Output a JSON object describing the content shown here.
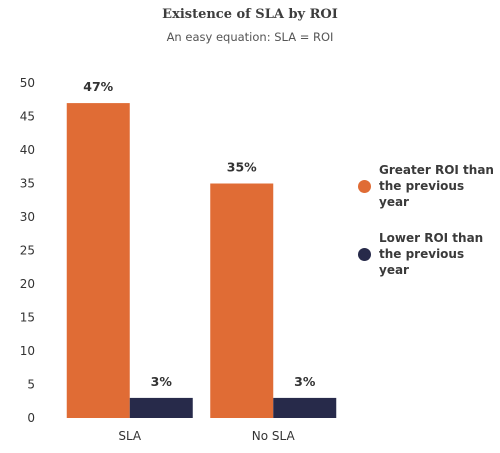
{
  "chart_data": {
    "type": "bar",
    "title": "Existence of SLA by ROI",
    "subtitle": "An easy equation: SLA = ROI",
    "categories": [
      "SLA",
      "No SLA"
    ],
    "series": [
      {
        "name": "Greater ROI than the previous year",
        "values": [
          47,
          35
        ],
        "labels": [
          "47%",
          "35%"
        ],
        "color": "#E06C35"
      },
      {
        "name": "Lower ROI than the previous year",
        "values": [
          3,
          3
        ],
        "labels": [
          "3%",
          "3%"
        ],
        "color": "#272A4A"
      }
    ],
    "ylim": [
      0,
      50
    ],
    "yticks": [
      0,
      5,
      10,
      15,
      20,
      25,
      30,
      35,
      40,
      45,
      50
    ],
    "grid": false,
    "legend_position": "right"
  }
}
